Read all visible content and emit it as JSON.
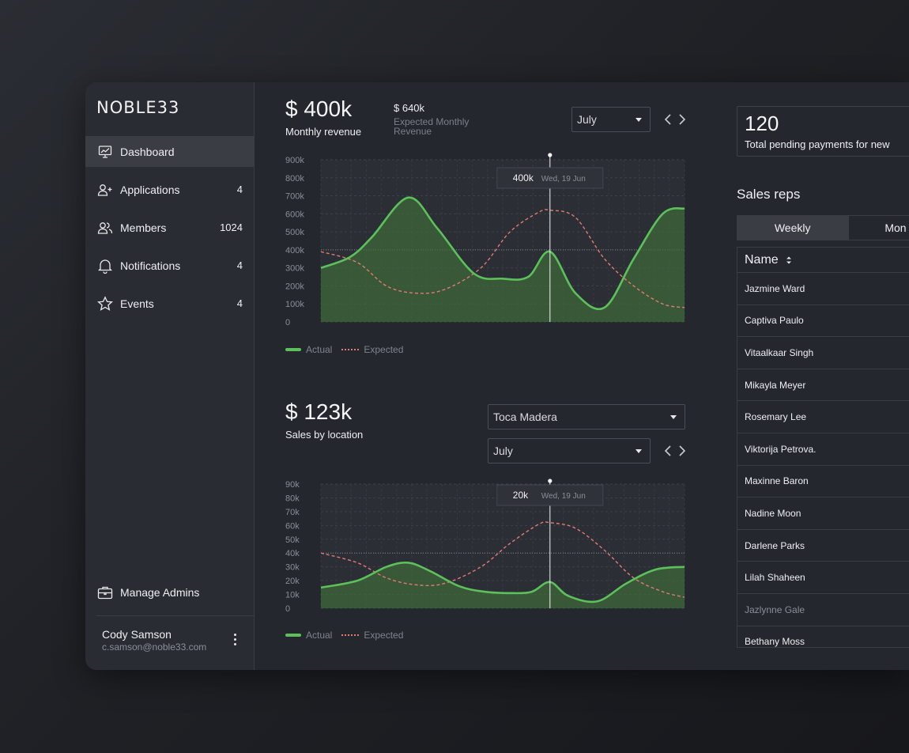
{
  "brand": {
    "logo": "NOBLE33"
  },
  "sidebar": {
    "items": [
      {
        "label": "Dashboard",
        "count": ""
      },
      {
        "label": "Applications",
        "count": "4"
      },
      {
        "label": "Members",
        "count": "1024"
      },
      {
        "label": "Notifications",
        "count": "4"
      },
      {
        "label": "Events",
        "count": "4"
      }
    ],
    "manage_admins": "Manage Admins",
    "user": {
      "name": "Cody Samson",
      "email": "c.samson@noble33.com"
    }
  },
  "revenue": {
    "value": "$ 400k",
    "label": "Monthly revenue",
    "expected_value": "$ 640k",
    "expected_label_1": "Expected Monthly",
    "expected_label_2": "Revenue",
    "month": "July",
    "tooltip_value": "400k",
    "tooltip_date": "Wed, 19 Jun"
  },
  "location": {
    "value": "$ 123k",
    "label": "Sales by location",
    "venue": "Toca Madera",
    "month": "July",
    "tooltip_value": "20k",
    "tooltip_date": "Wed, 19 Jun"
  },
  "legend": {
    "actual": "Actual",
    "expected": "Expected"
  },
  "pending": {
    "count": "120",
    "label": "Total pending payments for new"
  },
  "sales_reps": {
    "title": "Sales reps",
    "tabs": [
      "Weekly",
      "Mon"
    ],
    "column": "Name",
    "rows": [
      "Jazmine Ward",
      "Captiva Paulo",
      "Vitaalkaar Singh",
      "Mikayla Meyer",
      "Rosemary Lee",
      "Viktorija Petrova.",
      "Maxinne Baron",
      "Nadine Moon",
      "Darlene Parks",
      "Lilah Shaheen",
      "Jazlynne Gale",
      "Bethany Moss"
    ]
  },
  "colors": {
    "actual": "#5cc15a",
    "expected": "#e07b72",
    "fill": "#3f6b3a"
  },
  "chart_data": [
    {
      "type": "area",
      "title": "Monthly revenue",
      "ylabel": "",
      "xlabel": "",
      "ylim": [
        0,
        900000
      ],
      "yticks": [
        "0",
        "100k",
        "200k",
        "300k",
        "400k",
        "500k",
        "600k",
        "700k",
        "800k",
        "900k"
      ],
      "reference_line": 400000,
      "marker_x": 0.63,
      "series": [
        {
          "name": "Actual",
          "x": [
            0,
            0.08,
            0.14,
            0.24,
            0.32,
            0.42,
            0.5,
            0.57,
            0.63,
            0.7,
            0.78,
            0.86,
            0.94,
            1
          ],
          "values": [
            300000,
            360000,
            470000,
            690000,
            520000,
            270000,
            240000,
            250000,
            390000,
            160000,
            80000,
            350000,
            600000,
            630000
          ]
        },
        {
          "name": "Expected",
          "x": [
            0,
            0.1,
            0.18,
            0.26,
            0.34,
            0.44,
            0.52,
            0.6,
            0.63,
            0.7,
            0.78,
            0.86,
            0.94,
            1
          ],
          "values": [
            390000,
            330000,
            200000,
            160000,
            180000,
            300000,
            500000,
            610000,
            620000,
            580000,
            350000,
            200000,
            100000,
            80000
          ]
        }
      ]
    },
    {
      "type": "area",
      "title": "Sales by location",
      "ylabel": "",
      "xlabel": "",
      "ylim": [
        0,
        90000
      ],
      "yticks": [
        "0",
        "10k",
        "20k",
        "30k",
        "40k",
        "50k",
        "60k",
        "70k",
        "80k",
        "90k"
      ],
      "reference_line": 40000,
      "marker_x": 0.63,
      "series": [
        {
          "name": "Actual",
          "x": [
            0,
            0.1,
            0.18,
            0.24,
            0.3,
            0.38,
            0.45,
            0.52,
            0.58,
            0.63,
            0.68,
            0.76,
            0.84,
            0.92,
            1
          ],
          "values": [
            15000,
            20000,
            30000,
            33000,
            27000,
            16000,
            12000,
            11000,
            12000,
            19000,
            9000,
            5000,
            18000,
            28000,
            30000
          ]
        },
        {
          "name": "Expected",
          "x": [
            0,
            0.1,
            0.18,
            0.26,
            0.34,
            0.44,
            0.52,
            0.6,
            0.63,
            0.7,
            0.78,
            0.86,
            0.94,
            1
          ],
          "values": [
            40000,
            33000,
            22000,
            17000,
            18000,
            30000,
            47000,
            61000,
            62000,
            58000,
            42000,
            22000,
            12000,
            8000
          ]
        }
      ]
    }
  ]
}
